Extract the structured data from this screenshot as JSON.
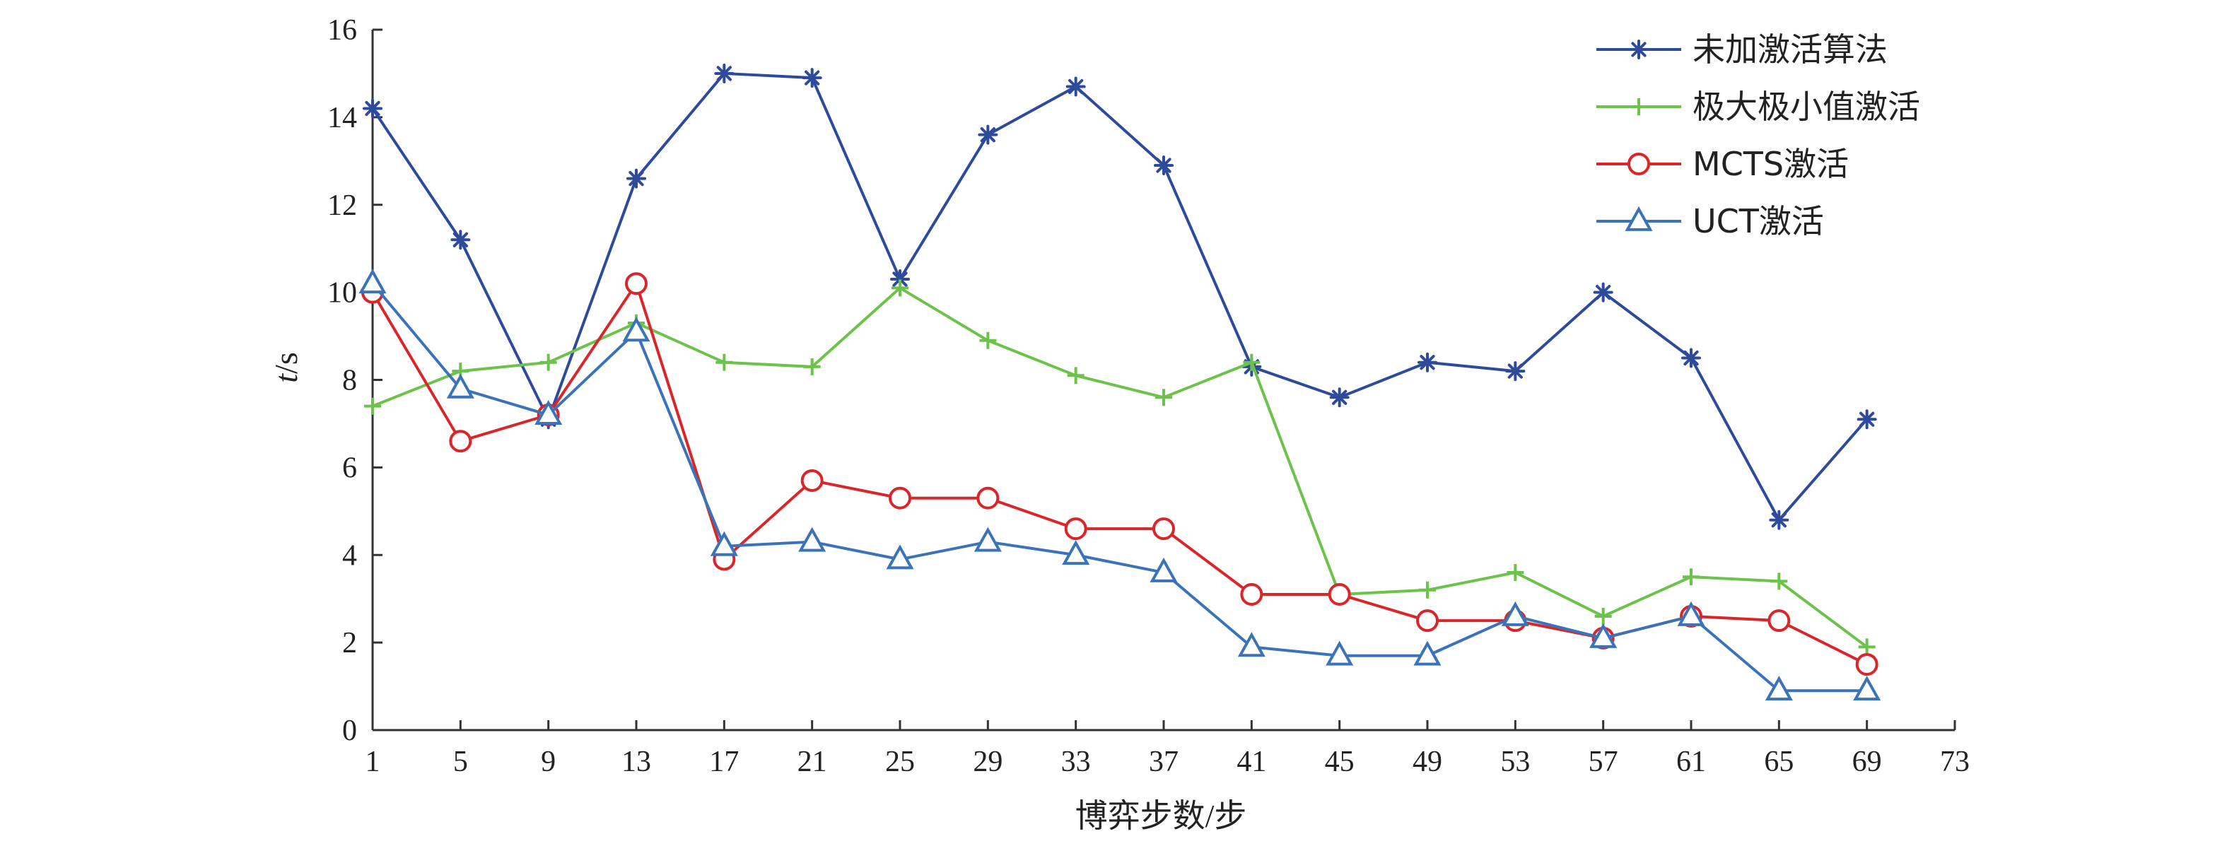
{
  "chart_data": {
    "type": "line",
    "title": "",
    "xlabel": "博弈步数/步",
    "ylabel_italic": "t",
    "ylabel_rest": "/s",
    "xlim": [
      1,
      73
    ],
    "ylim": [
      0,
      16
    ],
    "xticks": [
      1,
      5,
      9,
      13,
      17,
      21,
      25,
      29,
      33,
      37,
      41,
      45,
      49,
      53,
      57,
      61,
      65,
      69,
      73
    ],
    "yticks": [
      0,
      2,
      4,
      6,
      8,
      10,
      12,
      14,
      16
    ],
    "x": [
      1,
      5,
      9,
      13,
      17,
      21,
      25,
      29,
      33,
      37,
      41,
      45,
      49,
      53,
      57,
      61,
      65,
      69
    ],
    "grid": false,
    "legend_position": "top-right",
    "series": [
      {
        "name": "未加激活算法",
        "color": "#2e4b9b",
        "marker": "asterisk",
        "values": [
          14.2,
          11.2,
          7.1,
          12.6,
          15.0,
          14.9,
          10.3,
          13.6,
          14.7,
          12.9,
          8.3,
          7.6,
          8.4,
          8.2,
          10.0,
          8.5,
          4.8,
          7.1
        ]
      },
      {
        "name": "极大极小值激活",
        "color": "#6cc24a",
        "marker": "plus",
        "values": [
          7.4,
          8.2,
          8.4,
          9.3,
          8.4,
          8.3,
          10.1,
          8.9,
          8.1,
          7.6,
          8.4,
          3.1,
          3.2,
          3.6,
          2.6,
          3.5,
          3.4,
          1.9
        ]
      },
      {
        "name": "MCTS激活",
        "color": "#d9262b",
        "marker": "circle",
        "values": [
          10.0,
          6.6,
          7.2,
          10.2,
          3.9,
          5.7,
          5.3,
          5.3,
          4.6,
          4.6,
          3.1,
          3.1,
          2.5,
          2.5,
          2.1,
          2.6,
          2.5,
          1.5
        ]
      },
      {
        "name": "UCT激活",
        "color": "#3b73b9",
        "marker": "triangle",
        "values": [
          10.2,
          7.8,
          7.2,
          9.1,
          4.2,
          4.3,
          3.9,
          4.3,
          4.0,
          3.6,
          1.9,
          1.7,
          1.7,
          2.6,
          2.1,
          2.6,
          0.9,
          0.9
        ]
      }
    ]
  }
}
